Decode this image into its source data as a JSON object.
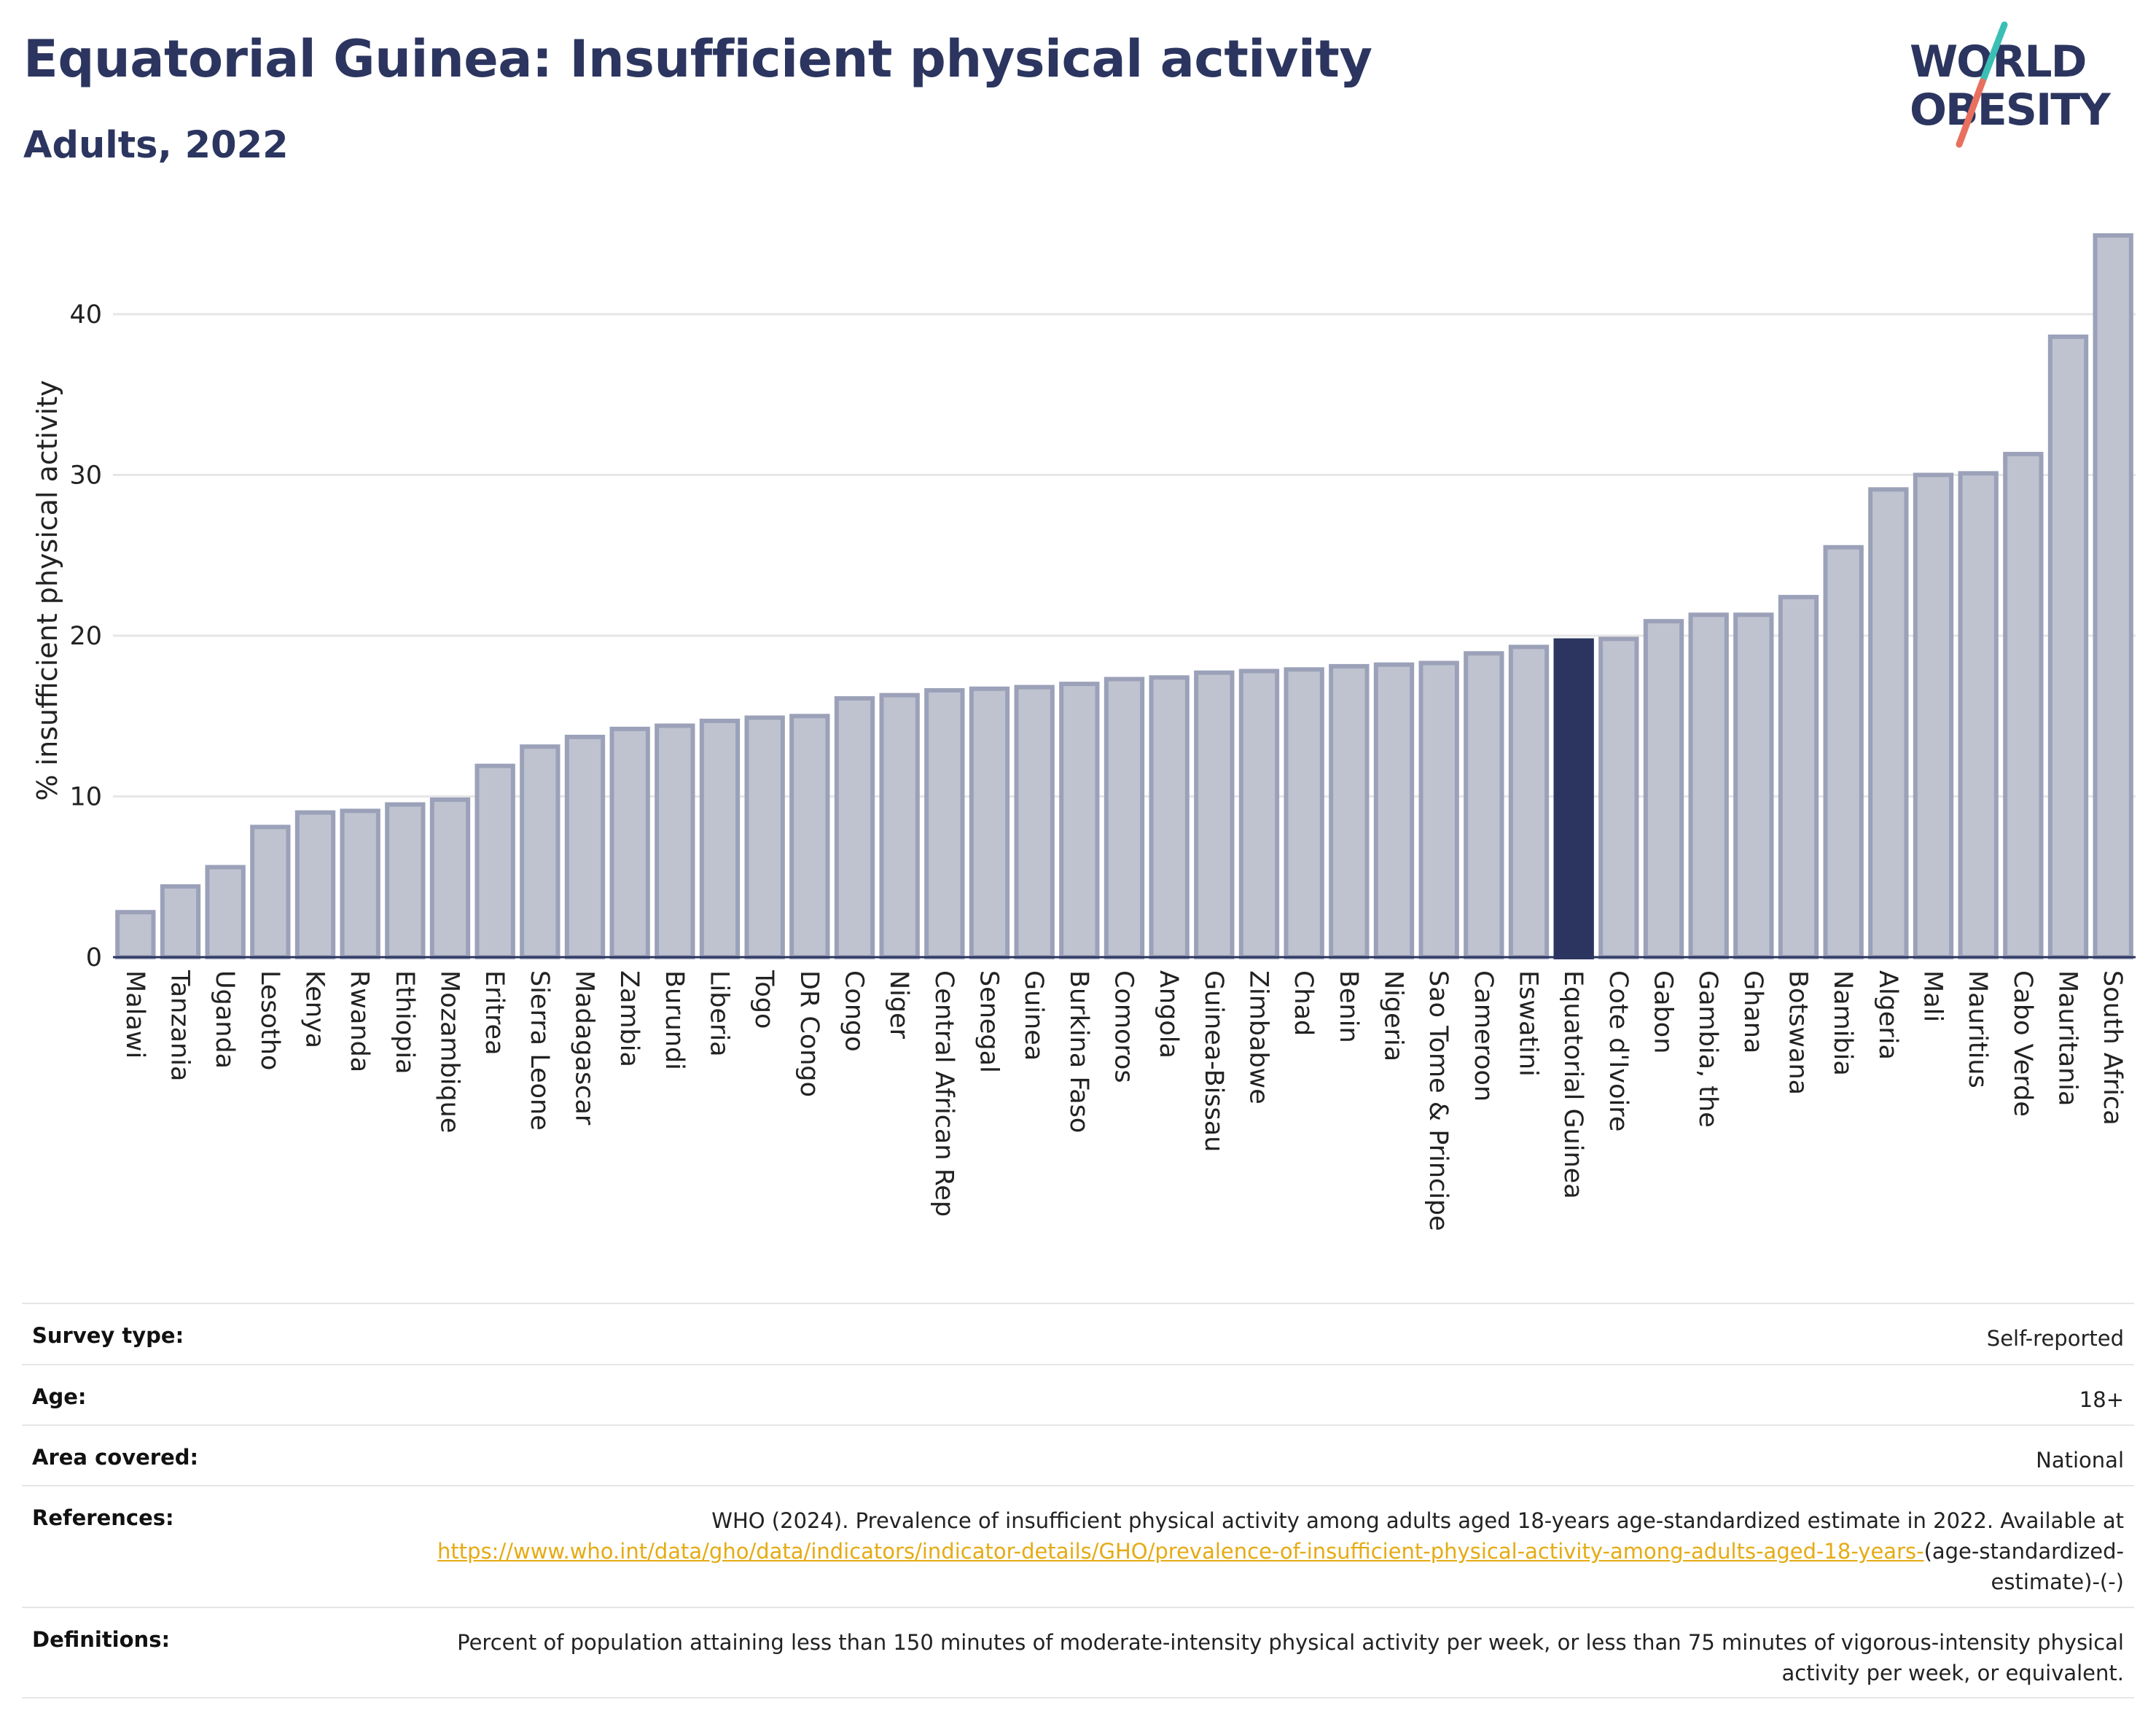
{
  "header": {
    "title": "Equatorial Guinea: Insufficient physical activity",
    "subtitle": "Adults, 2022"
  },
  "logo": {
    "line1": "WORLD",
    "line2": "OBESITY",
    "colors": {
      "text": "#2b355f",
      "slash_top": "#3bbfb5",
      "slash_bottom": "#e8705f"
    }
  },
  "chart_data": {
    "type": "bar",
    "title": "",
    "xlabel": "",
    "ylabel": "% insufficient physical activity",
    "ylim": [
      0,
      45
    ],
    "yticks": [
      0,
      10,
      20,
      30,
      40
    ],
    "grid": true,
    "highlight": "Equatorial Guinea",
    "colors": {
      "bar": "#bfc3d0",
      "bar_border": "#9ba1b8",
      "highlight": "#2b355f",
      "grid": "#e6e6e6",
      "axis": "#2b355f"
    },
    "categories": [
      "Malawi",
      "Tanzania",
      "Uganda",
      "Lesotho",
      "Kenya",
      "Rwanda",
      "Ethiopia",
      "Mozambique",
      "Eritrea",
      "Sierra Leone",
      "Madagascar",
      "Zambia",
      "Burundi",
      "Liberia",
      "Togo",
      "DR Congo",
      "Congo",
      "Niger",
      "Central African Rep",
      "Senegal",
      "Guinea",
      "Burkina Faso",
      "Comoros",
      "Angola",
      "Guinea-Bissau",
      "Zimbabwe",
      "Chad",
      "Benin",
      "Nigeria",
      "Sao Tome & Principe",
      "Cameroon",
      "Eswatini",
      "Equatorial Guinea",
      "Cote d'Ivoire",
      "Gabon",
      "Gambia, the",
      "Ghana",
      "Botswana",
      "Namibia",
      "Algeria",
      "Mali",
      "Mauritius",
      "Cabo Verde",
      "Mauritania",
      "South Africa"
    ],
    "values": [
      2.8,
      4.4,
      5.6,
      8.1,
      9.0,
      9.1,
      9.5,
      9.8,
      11.9,
      13.1,
      13.7,
      14.2,
      14.4,
      14.7,
      14.9,
      15.0,
      16.1,
      16.3,
      16.6,
      16.7,
      16.8,
      17.0,
      17.3,
      17.4,
      17.7,
      17.8,
      17.9,
      18.1,
      18.2,
      18.3,
      18.9,
      19.3,
      19.7,
      19.8,
      20.9,
      21.3,
      21.3,
      22.4,
      25.5,
      29.1,
      30.0,
      30.1,
      31.3,
      38.6,
      44.9
    ]
  },
  "meta": [
    {
      "label": "Survey type:",
      "value": "Self-reported"
    },
    {
      "label": "Age:",
      "value": "18+"
    },
    {
      "label": "Area covered:",
      "value": "National"
    },
    {
      "label": "References:",
      "value_prefix": "WHO (2024). Prevalence of insufficient physical activity among adults aged 18-years age-standardized estimate in 2022. Available at",
      "link": "https://www.who.int/data/gho/data/indicators/indicator-details/GHO/prevalence-of-insufficient-physical-activity-among-adults-aged-18-years-",
      "value_suffix": "(age-standardized-estimate)-(-)"
    },
    {
      "label": "Definitions:",
      "value": "Percent of population attaining less than 150 minutes of moderate-intensity physical activity per week, or less than 75 minutes of vigorous-intensity physical activity per week, or equivalent."
    }
  ]
}
